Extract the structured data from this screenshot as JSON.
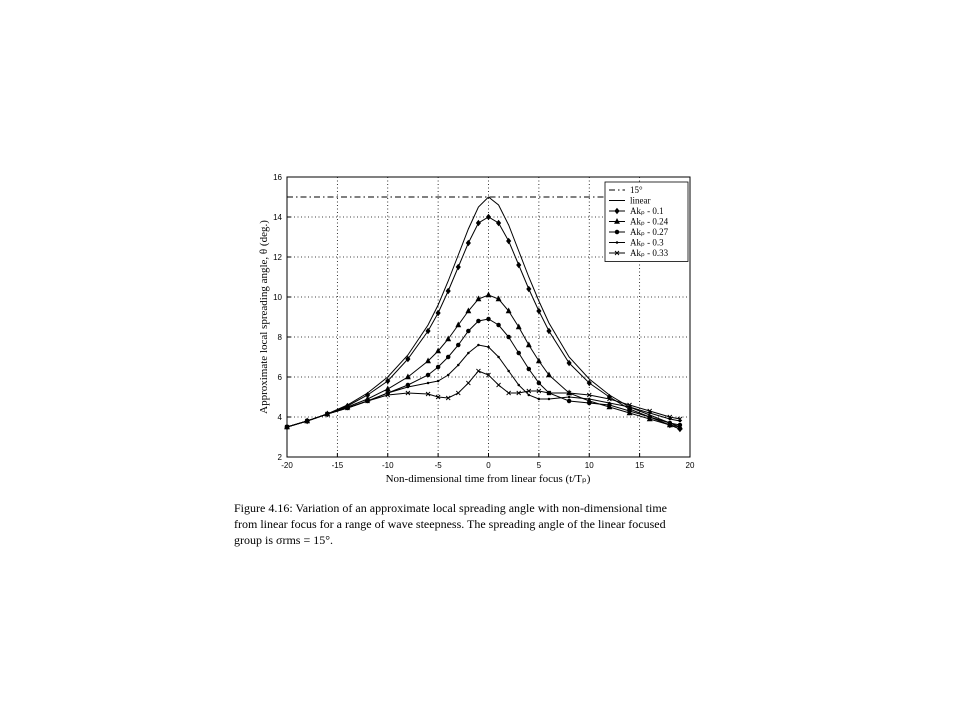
{
  "chart_data": {
    "type": "line",
    "xlabel": "Non-dimensional time from linear focus (t/Tₚ)",
    "ylabel": "Approximate local spreading angle, θ (deg.)",
    "xlim": [
      -20,
      20
    ],
    "ylim": [
      2,
      16
    ],
    "xticks": [
      -20,
      -15,
      -10,
      -5,
      0,
      5,
      10,
      15,
      20
    ],
    "yticks": [
      2,
      4,
      6,
      8,
      10,
      12,
      14,
      16
    ],
    "grid": true,
    "legend": "upper right",
    "x": [
      -20,
      -18,
      -16,
      -14,
      -12,
      -10,
      -8,
      -6,
      -5,
      -4,
      -3,
      -2,
      -1,
      0,
      1,
      2,
      3,
      4,
      5,
      6,
      8,
      10,
      12,
      14,
      16,
      18,
      19
    ],
    "series": [
      {
        "name": "15°",
        "color": "#000000",
        "style": "dashdot",
        "marker": "none",
        "values": [
          15,
          15,
          15,
          15,
          15,
          15,
          15,
          15,
          15,
          15,
          15,
          15,
          15,
          15,
          15,
          15,
          15,
          15,
          15,
          15,
          15,
          15,
          15,
          15,
          15,
          15,
          15
        ]
      },
      {
        "name": "linear",
        "color": "#000000",
        "style": "solid",
        "marker": "none",
        "values": [
          3.5,
          3.8,
          4.15,
          4.6,
          5.2,
          6.0,
          7.1,
          8.6,
          9.6,
          10.8,
          12.1,
          13.4,
          14.5,
          15,
          14.6,
          13.6,
          12.3,
          11.0,
          9.8,
          8.7,
          7.0,
          5.9,
          5.1,
          4.5,
          4.1,
          3.7,
          3.5
        ]
      },
      {
        "name": "Akₚ - 0.1",
        "color": "#000000",
        "style": "solid",
        "marker": "diamond",
        "values": [
          3.5,
          3.8,
          4.15,
          4.55,
          5.1,
          5.8,
          6.9,
          8.3,
          9.2,
          10.3,
          11.5,
          12.7,
          13.7,
          14.0,
          13.7,
          12.8,
          11.6,
          10.4,
          9.3,
          8.3,
          6.7,
          5.7,
          5.0,
          4.4,
          4.0,
          3.6,
          3.4
        ]
      },
      {
        "name": "Akₚ - 0.24",
        "color": "#000000",
        "style": "solid",
        "marker": "triangle",
        "values": [
          3.5,
          3.8,
          4.15,
          4.5,
          4.9,
          5.4,
          6.0,
          6.8,
          7.3,
          7.9,
          8.6,
          9.3,
          9.9,
          10.1,
          9.9,
          9.3,
          8.5,
          7.6,
          6.8,
          6.1,
          5.2,
          4.8,
          4.5,
          4.2,
          3.9,
          3.6,
          3.5
        ]
      },
      {
        "name": "Akₚ - 0.27",
        "color": "#000000",
        "style": "solid",
        "marker": "circle",
        "values": [
          3.5,
          3.8,
          4.15,
          4.45,
          4.8,
          5.2,
          5.6,
          6.1,
          6.5,
          7.0,
          7.6,
          8.3,
          8.8,
          8.9,
          8.6,
          8.0,
          7.2,
          6.4,
          5.7,
          5.2,
          4.8,
          4.7,
          4.6,
          4.3,
          4.0,
          3.7,
          3.6
        ]
      },
      {
        "name": "Akₚ - 0.3",
        "color": "#000000",
        "style": "solid",
        "marker": "dot",
        "values": [
          3.5,
          3.8,
          4.15,
          4.45,
          4.8,
          5.2,
          5.5,
          5.7,
          5.8,
          6.1,
          6.6,
          7.2,
          7.6,
          7.5,
          7.0,
          6.3,
          5.6,
          5.1,
          4.9,
          4.9,
          5.0,
          4.9,
          4.7,
          4.5,
          4.2,
          3.9,
          3.8
        ]
      },
      {
        "name": "Akₚ - 0.33",
        "color": "#000000",
        "style": "solid",
        "marker": "x",
        "values": [
          3.5,
          3.8,
          4.15,
          4.45,
          4.8,
          5.1,
          5.2,
          5.15,
          5.0,
          4.95,
          5.2,
          5.7,
          6.3,
          6.1,
          5.6,
          5.2,
          5.2,
          5.3,
          5.3,
          5.2,
          5.2,
          5.1,
          4.9,
          4.6,
          4.3,
          4.0,
          3.9
        ]
      }
    ]
  },
  "caption": [
    "Figure 4.16: Variation of an approximate local spreading angle with non-dimensional time",
    "from linear focus for a range of wave steepness. The spreading angle of the linear focused",
    "group is σrms = 15°."
  ]
}
